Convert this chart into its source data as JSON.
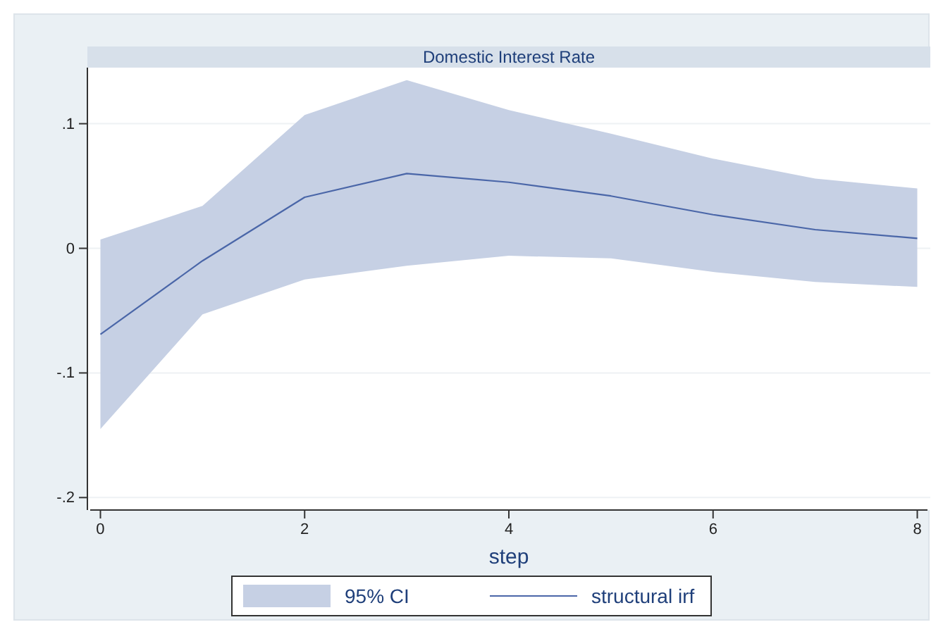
{
  "chart_data": {
    "type": "line",
    "title": "Domestic Interest Rate",
    "xlabel": "step",
    "annotations": [
      "95% CI"
    ],
    "x": [
      0,
      1,
      2,
      3,
      4,
      5,
      6,
      7,
      8
    ],
    "series": [
      {
        "name": "structural irf",
        "color": "#4a66a8",
        "values": [
          -0.069,
          -0.01,
          0.041,
          0.06,
          0.053,
          0.042,
          0.027,
          0.015,
          0.008
        ],
        "lower": [
          -0.145,
          -0.053,
          -0.025,
          -0.014,
          -0.006,
          -0.008,
          -0.019,
          -0.027,
          -0.031
        ],
        "upper": [
          0.007,
          0.034,
          0.107,
          0.135,
          0.111,
          0.092,
          0.072,
          0.056,
          0.048
        ]
      }
    ],
    "xlim": [
      -0.1,
      8.1
    ],
    "ylim": [
      -0.21,
      0.145
    ],
    "xticks": [
      0,
      2,
      4,
      6,
      8
    ],
    "yticks": [
      {
        "value": -0.2,
        "label": "-.2"
      },
      {
        "value": -0.1,
        "label": "-.1"
      },
      0,
      {
        "value": 0.1,
        "label": ".1"
      }
    ],
    "grid": "y",
    "legend": "bottom",
    "marker": "none",
    "line_style": "solid"
  }
}
